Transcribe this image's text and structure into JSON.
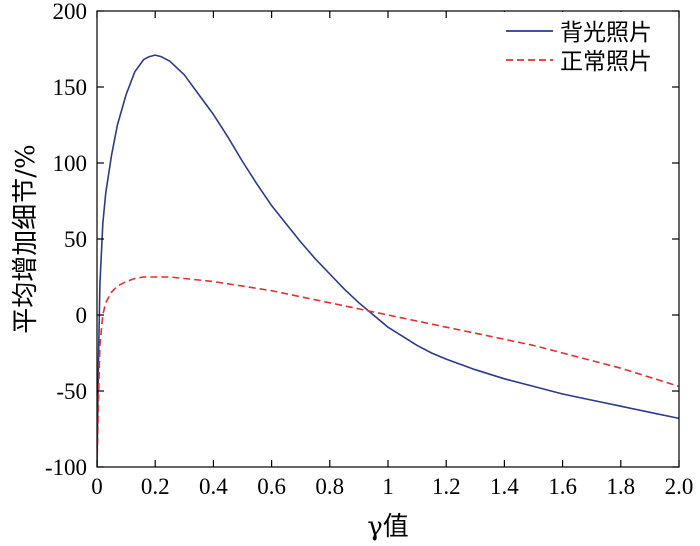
{
  "chart_data": {
    "type": "line",
    "title": "",
    "xlabel": "γ值",
    "ylabel": "平均增加细节/%",
    "xlim": [
      0,
      2
    ],
    "ylim": [
      -100,
      200
    ],
    "x_ticks": [
      0,
      0.2,
      0.4,
      0.6,
      0.8,
      1,
      1.2,
      1.4,
      1.6,
      1.8,
      2
    ],
    "x_tick_labels": [
      "0",
      "0.2",
      "0.4",
      "0.6",
      "0.8",
      "1",
      "1.2",
      "1.4",
      "1.6",
      "1.8",
      "2.0"
    ],
    "y_ticks": [
      -100,
      -50,
      0,
      50,
      100,
      150,
      200
    ],
    "y_tick_labels": [
      "-100",
      "-50",
      "0",
      "50",
      "100",
      "150",
      "200"
    ],
    "grid": false,
    "legend_position": "top-right",
    "series": [
      {
        "name": "背光照片",
        "color": "#2e3a87",
        "dash": "solid",
        "x": [
          0,
          0.005,
          0.01,
          0.02,
          0.03,
          0.05,
          0.07,
          0.1,
          0.13,
          0.16,
          0.18,
          0.2,
          0.22,
          0.25,
          0.3,
          0.35,
          0.4,
          0.45,
          0.5,
          0.55,
          0.6,
          0.65,
          0.7,
          0.75,
          0.8,
          0.85,
          0.9,
          0.95,
          1.0,
          1.05,
          1.1,
          1.15,
          1.2,
          1.3,
          1.4,
          1.5,
          1.6,
          1.7,
          1.8,
          1.9,
          2.0
        ],
        "y": [
          -100,
          -30,
          20,
          60,
          80,
          105,
          125,
          145,
          160,
          168,
          170,
          171,
          170,
          167,
          158,
          145,
          132,
          117,
          101,
          86,
          72,
          60,
          48,
          37,
          27,
          17,
          8,
          0,
          -8,
          -14,
          -20,
          -25,
          -29,
          -36,
          -42,
          -47,
          -52,
          -56,
          -60,
          -64,
          -68
        ]
      },
      {
        "name": "正常照片",
        "color": "#e03030",
        "dash": "dashed",
        "x": [
          0,
          0.005,
          0.01,
          0.02,
          0.03,
          0.05,
          0.07,
          0.1,
          0.13,
          0.16,
          0.2,
          0.25,
          0.3,
          0.35,
          0.4,
          0.5,
          0.6,
          0.7,
          0.8,
          0.9,
          1.0,
          1.1,
          1.2,
          1.3,
          1.4,
          1.5,
          1.6,
          1.7,
          1.8,
          1.9,
          2.0
        ],
        "y": [
          -100,
          -55,
          -20,
          0,
          8,
          15,
          19,
          22,
          24,
          25,
          25,
          25,
          24,
          23,
          22,
          19,
          16,
          12,
          8,
          4,
          0,
          -4,
          -8,
          -12,
          -16,
          -20,
          -25,
          -30,
          -35,
          -41,
          -47
        ]
      }
    ]
  }
}
